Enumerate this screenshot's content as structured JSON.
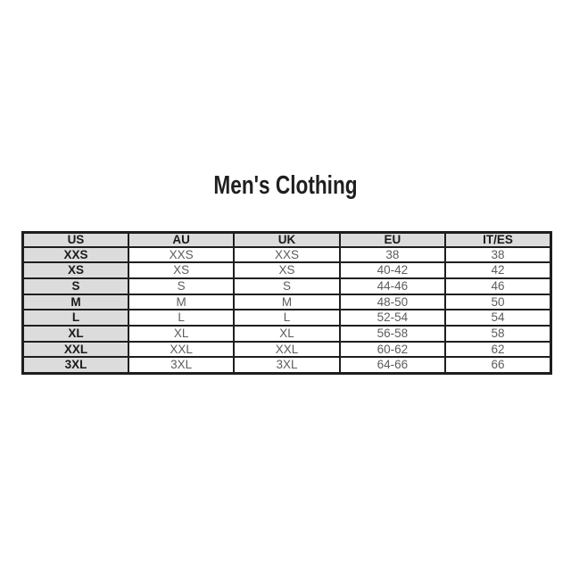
{
  "title": "Men's Clothing",
  "chart_data": {
    "type": "table",
    "title": "Men's Clothing",
    "columns": [
      "US",
      "AU",
      "UK",
      "EU",
      "IT/ES"
    ],
    "rows": [
      [
        "XXS",
        "XXS",
        "XXS",
        "38",
        "38"
      ],
      [
        "XS",
        "XS",
        "XS",
        "40-42",
        "42"
      ],
      [
        "S",
        "S",
        "S",
        "44-46",
        "46"
      ],
      [
        "M",
        "M",
        "M",
        "48-50",
        "50"
      ],
      [
        "L",
        "L",
        "L",
        "52-54",
        "54"
      ],
      [
        "XL",
        "XL",
        "XL",
        "56-58",
        "58"
      ],
      [
        "XXL",
        "XXL",
        "XXL",
        "60-62",
        "62"
      ],
      [
        "3XL",
        "3XL",
        "3XL",
        "64-66",
        "66"
      ]
    ],
    "layout": {
      "header_row_shaded": true,
      "first_column_shaded": true,
      "grid": "on"
    }
  },
  "colors": {
    "background": "#ffffff",
    "title_text": "#1f1f1f",
    "header_bg": "#dcdcdc",
    "header_text": "#1a1a1a",
    "cell_text": "#5c5c5c",
    "border": "#1e1e1e"
  }
}
